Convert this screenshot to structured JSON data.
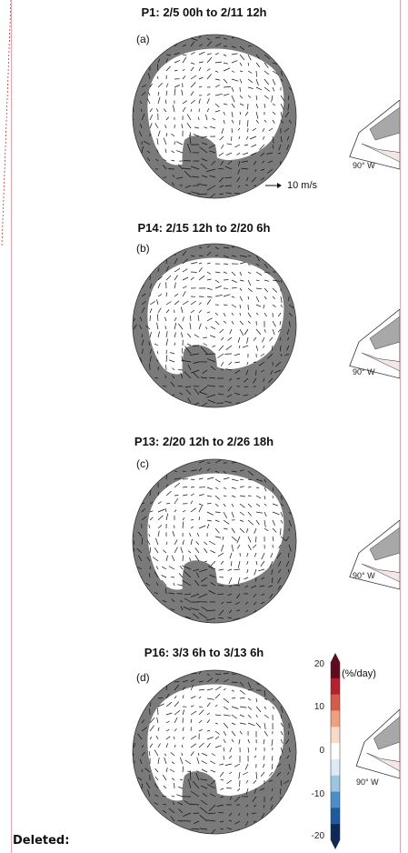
{
  "panels": [
    {
      "title": "P1: 2/5 00h to 2/11 12h",
      "label": "(a)",
      "inset_label": "90° W"
    },
    {
      "title": "P14: 2/15 12h to 2/20 6h",
      "label": "(b)",
      "inset_label": "90° W"
    },
    {
      "title": "P13: 2/20 12h to 2/26 18h",
      "label": "(c)",
      "inset_label": "90° W"
    },
    {
      "title": "P16: 3/3 6h to 3/13 6h",
      "label": "(d)",
      "inset_label": "90° W"
    }
  ],
  "scale_reference": "10 m/s",
  "colorbar": {
    "unit": "(%/day)",
    "ticks": [
      "20",
      "10",
      "0",
      "-10",
      "-20"
    ],
    "range": [
      -20,
      20
    ],
    "colors": [
      "#0b2a5a",
      "#1f5aa0",
      "#4a8fc7",
      "#9cc6e0",
      "#dceaf3",
      "#ffffff",
      "#f9d9c7",
      "#f1a07f",
      "#d75a4a",
      "#b51f2e",
      "#5e0a1f"
    ]
  },
  "footer": {
    "label": "Deleted:"
  },
  "colors": {
    "land": "#7a7a7a",
    "ice": "#ffffff",
    "border": "#e0a5ad"
  }
}
